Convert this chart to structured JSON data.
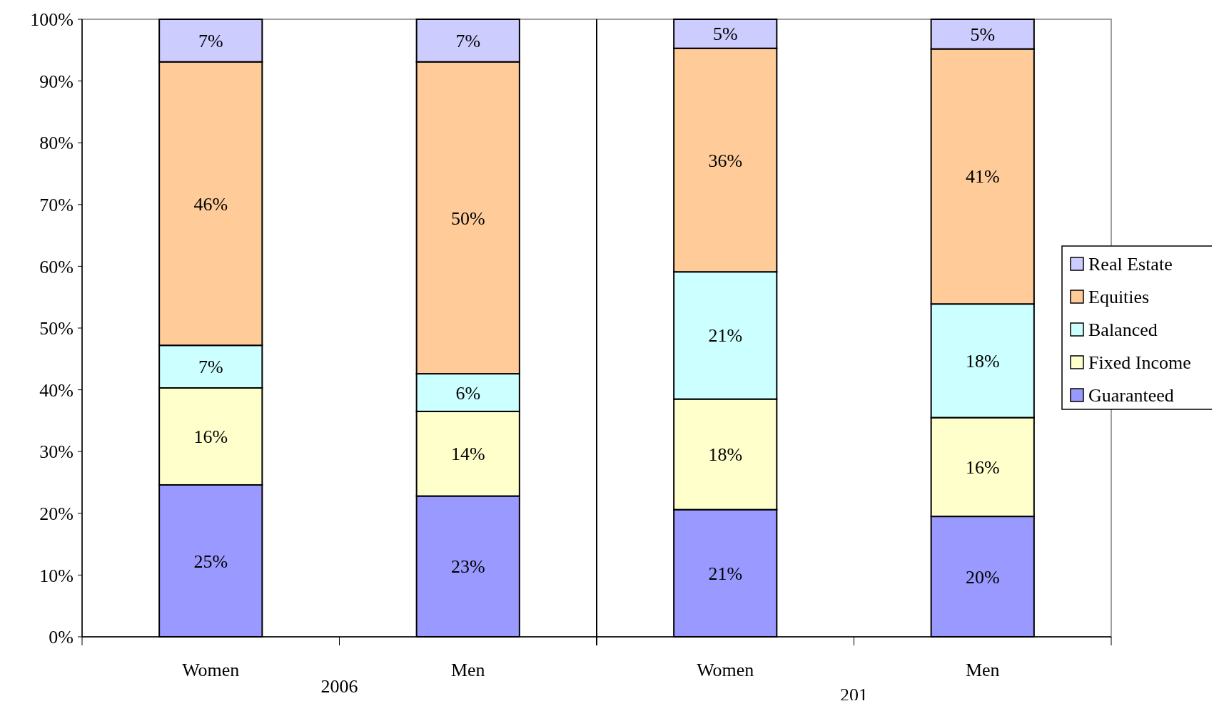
{
  "chart_data": {
    "type": "bar",
    "stacked": true,
    "categories": [
      "Women",
      "Men",
      "Women",
      "Men"
    ],
    "ylim": [
      0,
      1
    ],
    "yticks": [
      {
        "value": 0,
        "label": "0%"
      },
      {
        "value": 0.1,
        "label": "10%"
      },
      {
        "value": 0.2,
        "label": "20%"
      },
      {
        "value": 0.3,
        "label": "30%"
      },
      {
        "value": 0.4,
        "label": "40%"
      },
      {
        "value": 0.5,
        "label": "50%"
      },
      {
        "value": 0.6,
        "label": "60%"
      },
      {
        "value": 0.7,
        "label": "70%"
      },
      {
        "value": 0.8,
        "label": "80%"
      },
      {
        "value": 0.9,
        "label": "90%"
      },
      {
        "value": 1,
        "label": "100%"
      }
    ],
    "series": [
      {
        "name": "Guaranteed",
        "color": "#9999ff",
        "values": [
          0.246,
          0.228,
          0.206,
          0.195
        ],
        "value_labels": [
          "25%",
          "23%",
          "21%",
          "20%"
        ]
      },
      {
        "name": "Fixed Income",
        "color": "#ffffcc",
        "values": [
          0.157,
          0.137,
          0.179,
          0.16
        ],
        "value_labels": [
          "16%",
          "14%",
          "18%",
          "16%"
        ]
      },
      {
        "name": "Balanced",
        "color": "#ccffff",
        "values": [
          0.069,
          0.061,
          0.206,
          0.184
        ],
        "value_labels": [
          "7%",
          "6%",
          "21%",
          "18%"
        ]
      },
      {
        "name": "Equities",
        "color": "#ffcc99",
        "values": [
          0.459,
          0.505,
          0.362,
          0.413
        ],
        "value_labels": [
          "46%",
          "50%",
          "36%",
          "41%"
        ]
      },
      {
        "name": "Real Estate",
        "color": "#ccccff",
        "values": [
          0.069,
          0.069,
          0.047,
          0.048
        ],
        "value_labels": [
          "7%",
          "7%",
          "5%",
          "5%"
        ]
      }
    ],
    "annotations": [
      "2006",
      "201"
    ],
    "legend": "right",
    "grid": false
  }
}
